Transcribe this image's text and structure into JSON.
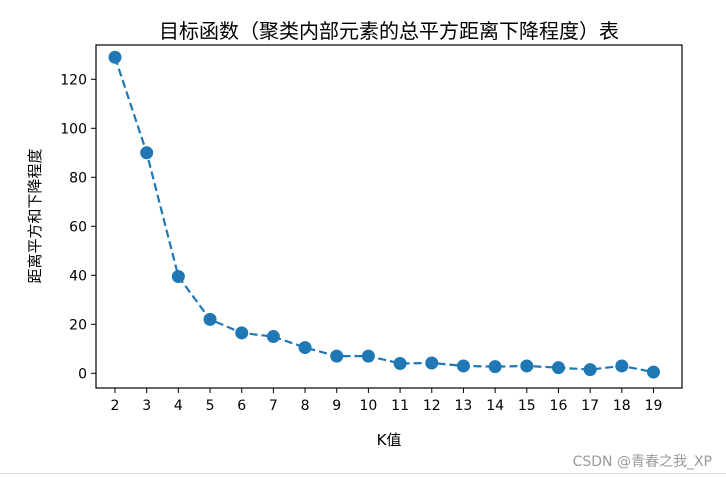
{
  "chart_data": {
    "type": "line",
    "title": "目标函数（聚类内部元素的总平方距离下降程度）表",
    "xlabel": "K值",
    "ylabel": "距离平方和下降程度",
    "x": [
      2,
      3,
      4,
      5,
      6,
      7,
      8,
      9,
      10,
      11,
      12,
      13,
      14,
      15,
      16,
      17,
      18,
      19
    ],
    "series": [
      {
        "values": [
          129,
          90,
          39.5,
          22,
          16.5,
          15,
          10.5,
          7,
          7,
          4,
          4.2,
          3,
          2.7,
          3,
          2.3,
          1.5,
          3,
          0.5
        ],
        "color": "#1f77b4",
        "line_style": "dashed",
        "marker": "circle"
      }
    ],
    "xlim": [
      1.4,
      19.9
    ],
    "ylim": [
      -6,
      134
    ],
    "xticks": [
      2,
      3,
      4,
      5,
      6,
      7,
      8,
      9,
      10,
      11,
      12,
      13,
      14,
      15,
      16,
      17,
      18,
      19
    ],
    "yticks": [
      0,
      20,
      40,
      60,
      80,
      100,
      120
    ],
    "grid": false,
    "legend": "none"
  },
  "watermark": "CSDN @青春之我_XP"
}
